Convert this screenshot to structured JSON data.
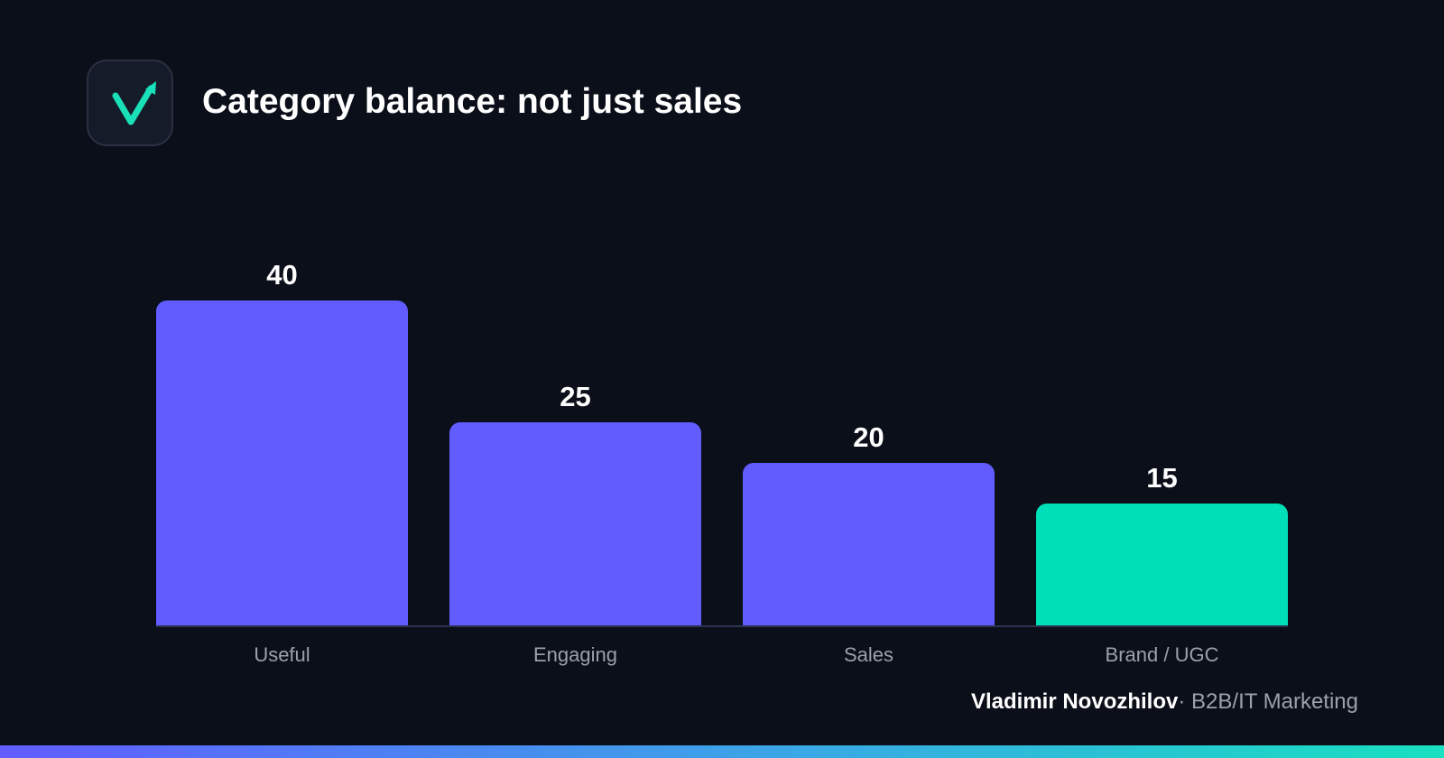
{
  "header": {
    "title": "Category balance: not just sales",
    "logo_icon": "v-checkmark-arrow-icon"
  },
  "chart_data": {
    "type": "bar",
    "title": "Category balance: not just sales",
    "categories": [
      "Useful",
      "Engaging",
      "Sales",
      "Brand / UGC"
    ],
    "values": [
      40,
      25,
      20,
      15
    ],
    "value_labels": [
      "40",
      "25",
      "20",
      "15"
    ],
    "colors": [
      "#625cff",
      "#625cff",
      "#625cff",
      "#00e0b8"
    ],
    "xlabel": "",
    "ylabel": "",
    "ylim": [
      0,
      40
    ],
    "grid": false,
    "legend": "none"
  },
  "footer": {
    "author": "Vladimir Novozhilov",
    "separator": "·",
    "role": "B2B/IT Marketing"
  },
  "colors": {
    "background": "#0b0f19",
    "bar_primary": "#625cff",
    "bar_accent": "#00e0b8",
    "axis_line": "#2c3350",
    "tick_label": "#9ca0ad",
    "logo_accent": "#19e0b8"
  }
}
